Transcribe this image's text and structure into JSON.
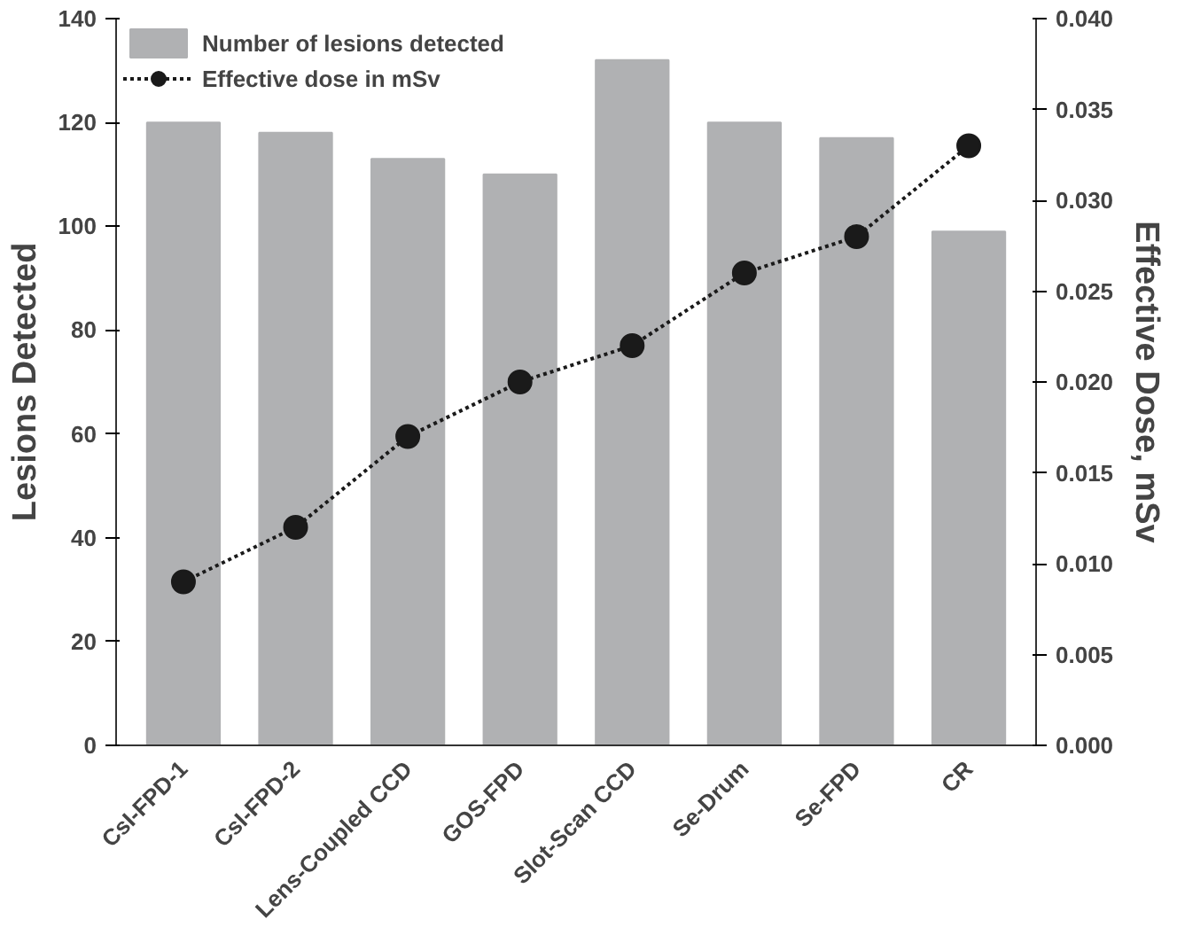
{
  "chart_data": {
    "type": "bar",
    "ylabel": "Lesions Detected",
    "y2label": "Effective Dose, mSv",
    "categories": [
      "CsI-FPD-1",
      "CsI-FPD-2",
      "Lens-Coupled CCD",
      "GOS-FPD",
      "Slot-Scan CCD",
      "Se-Drum",
      "Se-FPD",
      "CR"
    ],
    "series": [
      {
        "name": "Number of lesions detected",
        "color": "#b0b1b3",
        "values": [
          120,
          118,
          113,
          110,
          132,
          120,
          117,
          99
        ]
      },
      {
        "name": "Effective dose in mSv",
        "type": "line",
        "axis": "y2",
        "color": "#1a1a1a",
        "marker": "circle",
        "line_style": "dotted",
        "values": [
          0.009,
          0.012,
          0.017,
          0.02,
          0.022,
          0.026,
          0.028,
          0.033
        ]
      }
    ],
    "ylim": [
      0,
      140
    ],
    "yticks": [
      0,
      20,
      40,
      60,
      80,
      100,
      120,
      140
    ],
    "y2lim": [
      0,
      0.04
    ],
    "y2ticks": [
      {
        "value": 0,
        "label": "0.000"
      },
      {
        "value": 0.005,
        "label": "0.005"
      },
      {
        "value": 0.01,
        "label": "0.010"
      },
      {
        "value": 0.015,
        "label": "0.015"
      },
      {
        "value": 0.02,
        "label": "0.020"
      },
      {
        "value": 0.025,
        "label": "0.025"
      },
      {
        "value": 0.03,
        "label": "0.030"
      },
      {
        "value": 0.035,
        "label": "0.035"
      },
      {
        "value": 0.04,
        "label": "0.040"
      }
    ],
    "grid": false,
    "legend": "top"
  }
}
